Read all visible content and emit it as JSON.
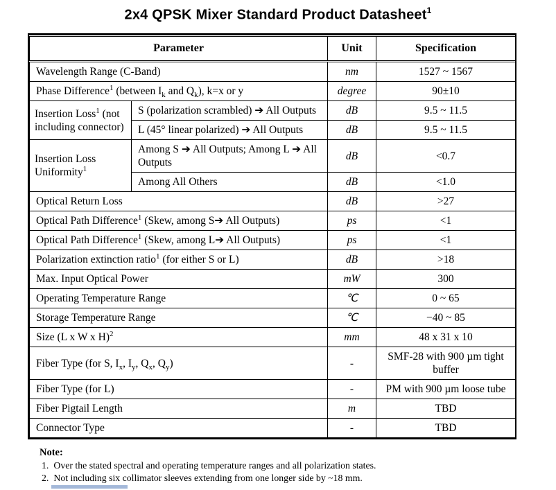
{
  "title": {
    "text": "2x4 QPSK Mixer Standard Product Datasheet",
    "superscript": "1"
  },
  "table": {
    "headers": {
      "parameter": "Parameter",
      "unit": "Unit",
      "specification": "Specification"
    },
    "rows": [
      {
        "param": "Wavelength Range (C-Band)",
        "unit": "nm",
        "spec": "1527 ~ 1567"
      },
      {
        "param": [
          {
            "t": "Phase Difference"
          },
          {
            "t": "1",
            "s": "sup"
          },
          {
            "t": " (between I"
          },
          {
            "t": "k",
            "s": "sub"
          },
          {
            "t": " and Q"
          },
          {
            "t": "k",
            "s": "sub"
          },
          {
            "t": "), k=x or y"
          }
        ],
        "unit": "degree",
        "spec": "90±10"
      },
      {
        "group": [
          {
            "t": "Insertion Loss"
          },
          {
            "t": "1",
            "s": "sup"
          },
          {
            "t": " (not including connector)"
          }
        ],
        "sub": "S (polarization scrambled) ➔ All Outputs",
        "unit": "dB",
        "spec": "9.5 ~ 11.5"
      },
      {
        "sub": "L (45° linear polarized) ➔ All Outputs",
        "unit": "dB",
        "spec": "9.5 ~ 11.5"
      },
      {
        "group": [
          {
            "t": "Insertion Loss Uniformity"
          },
          {
            "t": "1",
            "s": "sup"
          }
        ],
        "sub": "Among S ➔ All Outputs; Among L ➔ All Outputs",
        "unit": "dB",
        "spec": "<0.7"
      },
      {
        "sub": "Among All Others",
        "unit": "dB",
        "spec": "<1.0"
      },
      {
        "param": "Optical Return Loss",
        "unit": "dB",
        "spec": ">27"
      },
      {
        "param": [
          {
            "t": "Optical Path Difference"
          },
          {
            "t": "1",
            "s": "sup"
          },
          {
            "t": " (Skew, among S➔ All Outputs)"
          }
        ],
        "unit": "ps",
        "spec": "<1"
      },
      {
        "param": [
          {
            "t": "Optical Path Difference"
          },
          {
            "t": "1",
            "s": "sup"
          },
          {
            "t": " (Skew, among L➔ All Outputs)"
          }
        ],
        "unit": "ps",
        "spec": "<1"
      },
      {
        "param": [
          {
            "t": "Polarization extinction ratio"
          },
          {
            "t": "1",
            "s": "sup"
          },
          {
            "t": " (for either S or L)"
          }
        ],
        "unit": "dB",
        "spec": ">18"
      },
      {
        "param": "Max. Input Optical Power",
        "unit": "mW",
        "spec": "300"
      },
      {
        "param": "Operating Temperature Range",
        "unit": "℃",
        "spec": "0 ~ 65"
      },
      {
        "param": "Storage Temperature Range",
        "unit": "℃",
        "spec": "−40 ~ 85"
      },
      {
        "param": [
          {
            "t": "Size (L x W x H)"
          },
          {
            "t": "2",
            "s": "sup"
          }
        ],
        "unit": "mm",
        "spec": "48 x 31 x 10"
      },
      {
        "param": [
          {
            "t": "Fiber Type (for S, I"
          },
          {
            "t": "x",
            "s": "sub"
          },
          {
            "t": ", I"
          },
          {
            "t": "y",
            "s": "sub"
          },
          {
            "t": ", Q"
          },
          {
            "t": "x",
            "s": "sub"
          },
          {
            "t": ", Q"
          },
          {
            "t": "y",
            "s": "sub"
          },
          {
            "t": ")"
          }
        ],
        "unit": "-",
        "spec": "SMF-28 with 900 µm tight buffer"
      },
      {
        "param": "Fiber Type (for L)",
        "unit": "-",
        "spec": "PM with 900 µm loose tube"
      },
      {
        "param": "Fiber Pigtail Length",
        "unit": "m",
        "spec": "TBD"
      },
      {
        "param": "Connector Type",
        "unit": "-",
        "spec": "TBD"
      }
    ]
  },
  "notes": {
    "label": "Note:",
    "items": [
      {
        "num": "1.",
        "text": "Over the stated spectral and operating temperature ranges and all polarization states."
      },
      {
        "num": "2.",
        "text": "Not including six collimator sleeves extending from one longer side by ~18 mm."
      }
    ]
  },
  "colors": {
    "background": "#ffffff",
    "border": "#000000",
    "footer_bar": "#a3b8d9"
  }
}
